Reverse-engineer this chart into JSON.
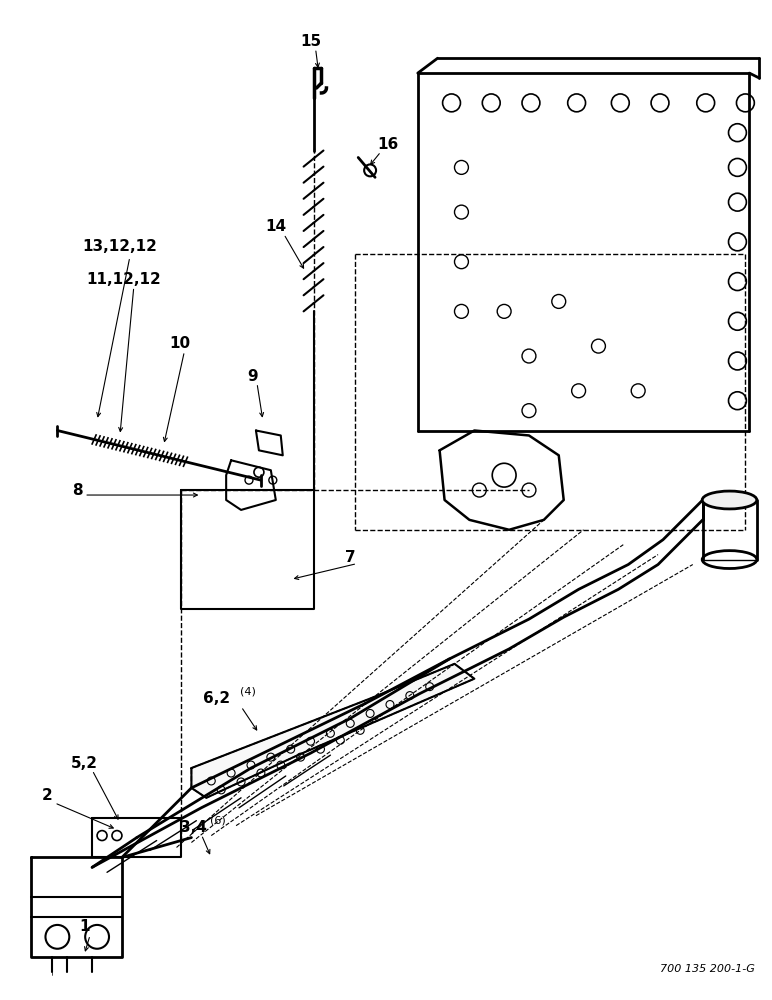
{
  "bg": "#ffffff",
  "lc": "#000000",
  "watermark": "700 135 200-1-G",
  "figw": 7.72,
  "figh": 10.0,
  "dpi": 100
}
